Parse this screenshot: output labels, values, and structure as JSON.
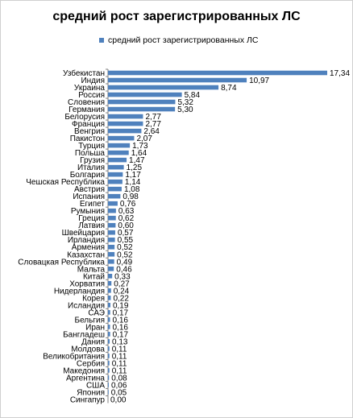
{
  "chart_data": {
    "type": "bar",
    "orientation": "horizontal",
    "title": "средний рост зарегистрированных ЛС",
    "legend": {
      "position": "top",
      "entries": [
        "средний рост зарегистрированных ЛС"
      ]
    },
    "series": [
      {
        "name": "средний рост зарегистрированных ЛС",
        "color": "#4f81bd",
        "values": [
          17.34,
          10.97,
          8.74,
          5.84,
          5.32,
          5.3,
          2.77,
          2.77,
          2.64,
          2.07,
          1.73,
          1.64,
          1.47,
          1.25,
          1.17,
          1.14,
          1.08,
          0.98,
          0.76,
          0.63,
          0.62,
          0.6,
          0.57,
          0.55,
          0.52,
          0.52,
          0.49,
          0.46,
          0.33,
          0.27,
          0.24,
          0.22,
          0.19,
          0.17,
          0.16,
          0.16,
          0.17,
          0.13,
          0.11,
          0.11,
          0.11,
          0.11,
          0.08,
          0.06,
          0.05,
          0.0
        ],
        "value_labels": [
          "17,34",
          "10,97",
          "8,74",
          "5,84",
          "5,32",
          "5,30",
          "2,77",
          "2,77",
          "2,64",
          "2,07",
          "1,73",
          "1,64",
          "1,47",
          "1,25",
          "1,17",
          "1,14",
          "1,08",
          "0,98",
          "0,76",
          "0,63",
          "0,62",
          "0,60",
          "0,57",
          "0,55",
          "0,52",
          "0,52",
          "0,49",
          "0,46",
          "0,33",
          "0,27",
          "0,24",
          "0,22",
          "0,19",
          "0,17",
          "0,16",
          "0,16",
          "0,17",
          "0,13",
          "0,11",
          "0,11",
          "0,11",
          "0,11",
          "0,08",
          "0,06",
          "0,05",
          "0,00"
        ]
      }
    ],
    "categories": [
      "Узбекистан",
      "Индия",
      "Украина",
      "Россия",
      "Словения",
      "Германия",
      "Белорусия",
      "Франция",
      "Венгрия",
      "Пакистон",
      "Турция",
      "Польша",
      "Грузия",
      "Италия",
      "Болгария",
      "Чешская Республика",
      "Австрия",
      "Испания",
      "Египет",
      "Румыния",
      "Греция",
      "Латвия",
      "Швейцария",
      "Ирландия",
      "Армения",
      "Казахстан",
      "Словацкая Республика",
      "Мальта",
      "Китай",
      "Хорватия",
      "Нидерландия",
      "Корея",
      "Исландия",
      "САЭ",
      "Бельгия",
      "Иран",
      "Бангладеш",
      "Дания",
      "Молдова",
      "Великобритания",
      "Сербия",
      "Македония",
      "Аргентина",
      "США",
      "Япония",
      "Сингапур"
    ],
    "xlim": [
      0,
      17.34
    ],
    "grid": false,
    "axis_line": "left"
  }
}
